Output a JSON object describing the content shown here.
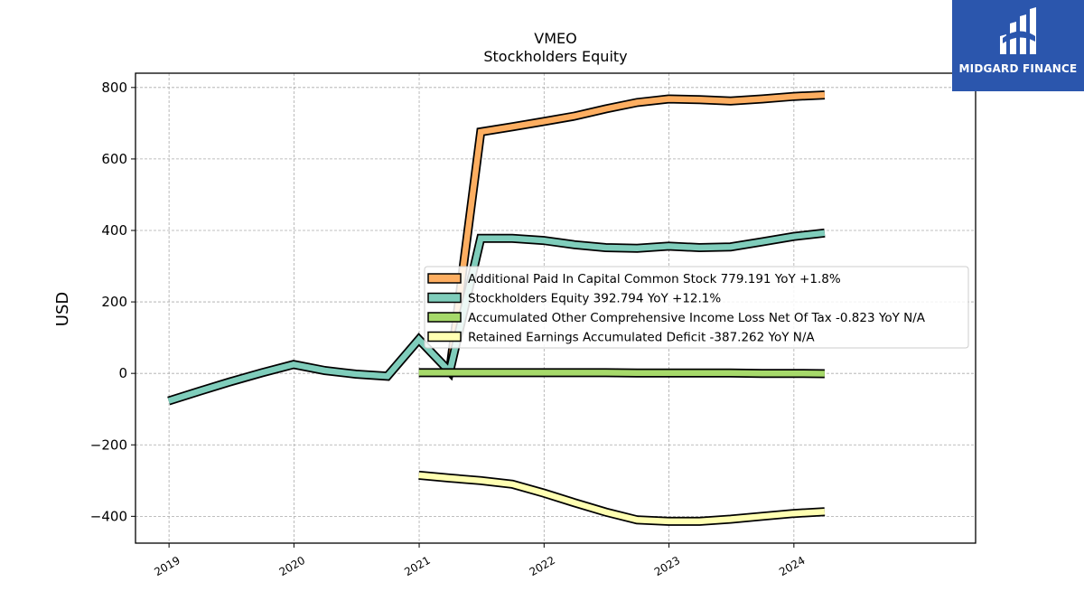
{
  "logo": {
    "brand": "MIDGARD FINANCE"
  },
  "chart_data": {
    "type": "line",
    "title": "VMEO",
    "subtitle": "Stockholders  Equity",
    "xlabel": "",
    "ylabel": "USD",
    "xlim": [
      "2018-09-25",
      "2025-06-15"
    ],
    "ylim": [
      -475,
      840
    ],
    "yticks": [
      800,
      600,
      400,
      200,
      0,
      -200,
      -400
    ],
    "ytick_labels": [
      "800",
      "600",
      "400",
      "200",
      "0",
      "−200",
      "−400"
    ],
    "xticks": [
      "2019-01-01",
      "2020-01-01",
      "2021-01-01",
      "2022-01-01",
      "2023-01-01",
      "2024-01-01"
    ],
    "xtick_labels": [
      "2019",
      "2020",
      "2021",
      "2022",
      "2023",
      "2024"
    ],
    "grid": true,
    "legend_position": "center-right",
    "series": [
      {
        "name": "Additional Paid In Capital Common Stock  779.191 YoY +1.8%",
        "color": "#fdae61",
        "x": [
          "2020-12-31",
          "2021-03-31",
          "2021-06-30",
          "2021-09-30",
          "2021-12-31",
          "2022-03-31",
          "2022-06-30",
          "2022-09-30",
          "2022-12-31",
          "2023-03-31",
          "2023-06-30",
          "2023-09-30",
          "2023-12-31",
          "2024-03-31"
        ],
        "values": [
          null,
          5,
          676,
          690,
          705,
          720,
          740,
          758,
          768,
          766,
          762,
          768,
          775,
          779
        ]
      },
      {
        "name": "Stockholders Equity  392.794 YoY +12.1%",
        "color": "#7fcdbb",
        "x": [
          "2018-12-31",
          "2019-03-31",
          "2019-06-30",
          "2019-09-30",
          "2019-12-31",
          "2020-03-31",
          "2020-06-30",
          "2020-09-30",
          "2020-12-31",
          "2021-03-31",
          "2021-06-30",
          "2021-09-30",
          "2021-12-31",
          "2022-03-31",
          "2022-06-30",
          "2022-09-30",
          "2022-12-31",
          "2023-03-31",
          "2023-06-30",
          "2023-09-30",
          "2023-12-31",
          "2024-03-31"
        ],
        "values": [
          -77,
          -50,
          -23,
          2,
          25,
          8,
          -2,
          -8,
          95,
          5,
          378,
          378,
          372,
          360,
          352,
          350,
          356,
          352,
          354,
          368,
          383,
          393
        ]
      },
      {
        "name": "Accumulated Other Comprehensive Income Loss Net Of Tax  -0.823 YoY N/A",
        "color": "#a6d96a",
        "x": [
          "2020-12-31",
          "2021-03-31",
          "2021-06-30",
          "2021-09-30",
          "2021-12-31",
          "2022-03-31",
          "2022-06-30",
          "2022-09-30",
          "2022-12-31",
          "2023-03-31",
          "2023-06-30",
          "2023-09-30",
          "2023-12-31",
          "2024-03-31"
        ],
        "values": [
          2,
          2,
          2,
          2,
          2,
          2,
          2,
          1,
          1,
          1,
          1,
          0,
          0,
          -0.823
        ]
      },
      {
        "name": "Retained Earnings Accumulated Deficit  -387.262 YoY N/A",
        "color": "#ffffb2",
        "x": [
          "2020-12-31",
          "2021-03-31",
          "2021-06-30",
          "2021-09-30",
          "2021-12-31",
          "2022-03-31",
          "2022-06-30",
          "2022-09-30",
          "2022-12-31",
          "2023-03-31",
          "2023-06-30",
          "2023-09-30",
          "2023-12-31",
          "2024-03-31"
        ],
        "values": [
          -285,
          -293,
          -300,
          -310,
          -335,
          -362,
          -388,
          -410,
          -414,
          -414,
          -408,
          -400,
          -392,
          -387
        ]
      }
    ]
  }
}
